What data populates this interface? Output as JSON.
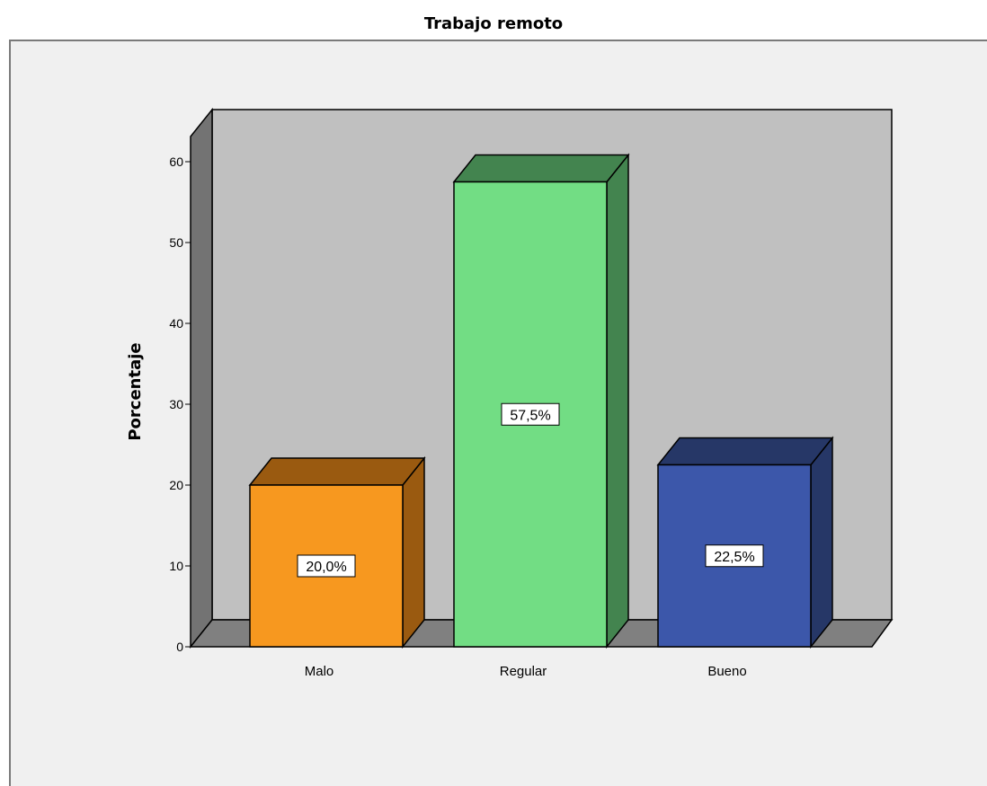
{
  "chart_data": {
    "type": "bar",
    "title": "Trabajo remoto",
    "xlabel": "",
    "ylabel": "Porcentaje",
    "categories": [
      "Malo",
      "Regular",
      "Bueno"
    ],
    "values": [
      20.0,
      57.5,
      22.5
    ],
    "value_labels": [
      "20,0%",
      "57,5%",
      "22,5%"
    ],
    "yticks": [
      0,
      10,
      20,
      30,
      40,
      50,
      60
    ],
    "ylim": [
      0,
      60
    ],
    "style": "3d",
    "bar_colors": [
      {
        "front": "#f7981f",
        "top": "#9a5a10",
        "side": "#9a5a10"
      },
      {
        "front": "#72dd84",
        "top": "#43844f",
        "side": "#43844f"
      },
      {
        "front": "#3c57aa",
        "top": "#263767",
        "side": "#263767"
      }
    ],
    "wall_color": "#c0c0c0",
    "floor_color": "#808080",
    "background": "#f0f0f0",
    "grid": false,
    "legend": "none"
  }
}
